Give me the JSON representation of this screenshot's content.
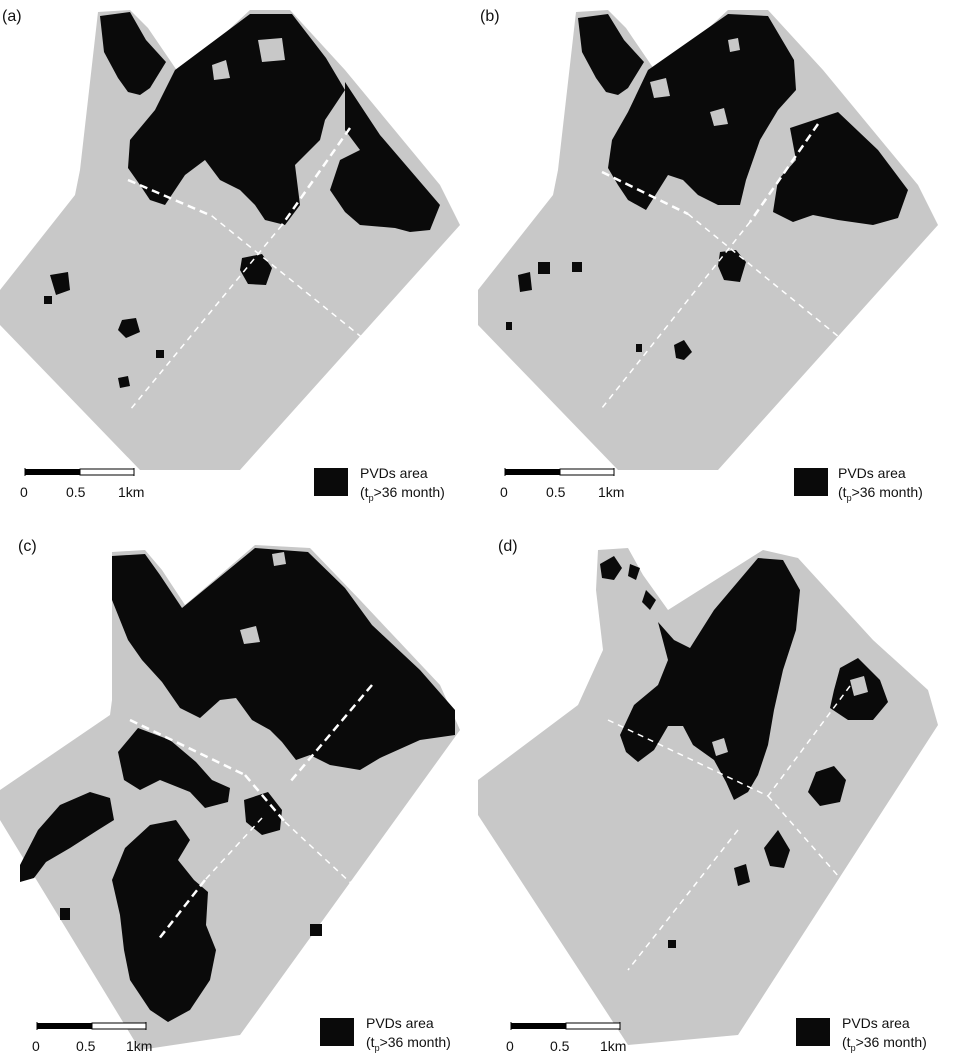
{
  "colors": {
    "background": "#ffffff",
    "study_area": "#c8c8c8",
    "pvd_area": "#0a0a0a",
    "road": "#ffffff"
  },
  "panels": [
    {
      "label": "(a)",
      "legend": {
        "line1": "PVDs area",
        "line2_prefix": "(t",
        "line2_sub": "p",
        "line2_suffix": ">36 month)"
      },
      "scale": {
        "t0": "0",
        "t1": "0.5",
        "t2": "1km"
      }
    },
    {
      "label": "(b)",
      "legend": {
        "line1": "PVDs area",
        "line2_prefix": "(t",
        "line2_sub": "p",
        "line2_suffix": ">36 month)"
      },
      "scale": {
        "t0": "0",
        "t1": "0.5",
        "t2": "1km"
      }
    },
    {
      "label": "(c)",
      "legend": {
        "line1": "PVDs area",
        "line2_prefix": "(t",
        "line2_sub": "p",
        "line2_suffix": ">36 month)"
      },
      "scale": {
        "t0": "0",
        "t1": "0.5",
        "t2": "1km"
      }
    },
    {
      "label": "(d)",
      "legend": {
        "line1": "PVDs area",
        "line2_prefix": "(t",
        "line2_sub": "p",
        "line2_suffix": ">36 month)"
      },
      "scale": {
        "t0": "0",
        "t1": "0.5",
        "t2": "1km"
      }
    }
  ]
}
